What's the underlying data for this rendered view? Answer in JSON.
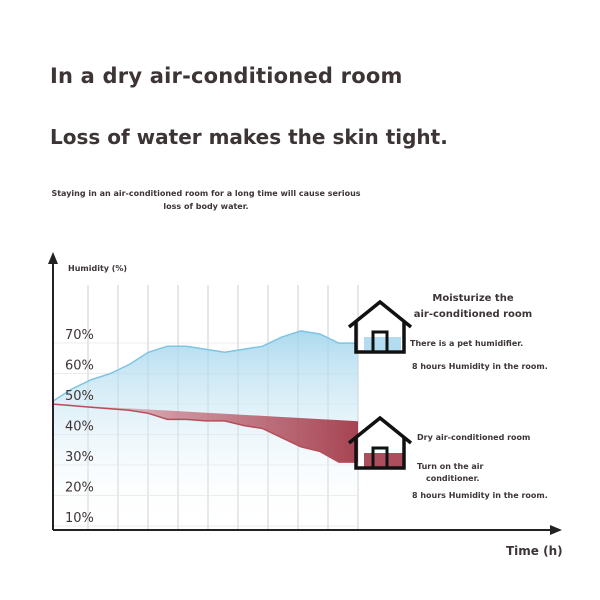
{
  "header": {
    "title": "In a dry air-conditioned room",
    "subtitle": "Loss of water makes the skin tight.",
    "caption": "Staying in an air-conditioned room for a long time will cause serious loss of body water."
  },
  "chart_data": {
    "type": "area",
    "ylabel": "Humidity (%)",
    "xlabel": "Time (h)",
    "ylim": [
      5,
      80
    ],
    "yticks": [
      "10%",
      "20%",
      "30%",
      "40%",
      "50%",
      "60%",
      "70%"
    ],
    "ytick_values": [
      10,
      20,
      30,
      40,
      50,
      60,
      70
    ],
    "grid": true,
    "x": [
      0,
      0.5,
      1,
      1.5,
      2,
      2.5,
      3,
      3.5,
      4,
      4.5,
      5,
      5.5,
      6,
      6.5,
      7,
      7.5,
      8
    ],
    "series": [
      {
        "color": "#7fc4e3",
        "values": [
          48,
          52,
          55,
          57,
          60,
          64,
          66,
          66,
          65,
          64,
          65,
          66,
          69,
          71,
          70,
          67,
          67
        ]
      },
      {
        "color": "#b64e5a",
        "values": [
          47,
          46.5,
          46,
          45.5,
          45,
          44,
          42,
          42,
          41.5,
          41.5,
          40,
          39,
          36,
          33,
          31.5,
          28,
          28
        ]
      }
    ],
    "annotations": {
      "moist": {
        "title_line1": "Moisturize the",
        "title_line2": "air-conditioned room",
        "note": "There is a pet humidifier.",
        "footer": "8 hours Humidity in the room."
      },
      "dry": {
        "title": "Dry air-conditioned room",
        "note_line1": "Turn on the air",
        "note_line2": "conditioner.",
        "footer": "8 hours Humidity in the room."
      }
    },
    "icons": [
      "house-icon",
      "house-icon"
    ]
  },
  "colors": {
    "text": "#3d3535",
    "grid": "#cfcfcf",
    "blue": "#7fc4e3",
    "red": "#b64e5a"
  }
}
